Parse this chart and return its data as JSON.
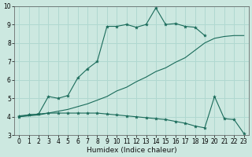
{
  "xlabel": "Humidex (Indice chaleur)",
  "xlim": [
    -0.5,
    23.5
  ],
  "ylim": [
    3,
    10
  ],
  "xticks": [
    0,
    1,
    2,
    3,
    4,
    5,
    6,
    7,
    8,
    9,
    10,
    11,
    12,
    13,
    14,
    15,
    16,
    17,
    18,
    19,
    20,
    21,
    22,
    23
  ],
  "yticks": [
    3,
    4,
    5,
    6,
    7,
    8,
    9,
    10
  ],
  "bg_color": "#cce8e0",
  "grid_color": "#b0d8d0",
  "line_color": "#1a6b5a",
  "x_upper": [
    0,
    1,
    2,
    3,
    4,
    5,
    6,
    7,
    8,
    9,
    10,
    11,
    12,
    13,
    14,
    15,
    16,
    17,
    18,
    19
  ],
  "y_upper": [
    4.0,
    4.1,
    4.15,
    5.1,
    5.0,
    5.15,
    6.1,
    6.6,
    7.0,
    8.9,
    8.9,
    9.0,
    8.85,
    9.0,
    9.9,
    9.0,
    9.05,
    8.9,
    8.85,
    8.4
  ],
  "x_mid": [
    0,
    1,
    2,
    3,
    4,
    5,
    6,
    7,
    8,
    9,
    10,
    11,
    12,
    13,
    14,
    15,
    16,
    17,
    18,
    19,
    20,
    21,
    22,
    23
  ],
  "y_mid": [
    4.0,
    4.05,
    4.1,
    4.2,
    4.3,
    4.4,
    4.55,
    4.7,
    4.9,
    5.1,
    5.4,
    5.6,
    5.9,
    6.15,
    6.45,
    6.65,
    6.95,
    7.2,
    7.6,
    8.0,
    8.25,
    8.35,
    8.4,
    8.4
  ],
  "x_lower": [
    0,
    1,
    2,
    3,
    4,
    5,
    6,
    7,
    8,
    9,
    10,
    11,
    12,
    13,
    14,
    15,
    16,
    17,
    18,
    19,
    20,
    21,
    22,
    23
  ],
  "y_lower": [
    4.05,
    4.1,
    4.15,
    4.2,
    4.2,
    4.2,
    4.2,
    4.2,
    4.2,
    4.15,
    4.1,
    4.05,
    4.0,
    3.95,
    3.9,
    3.85,
    3.75,
    3.65,
    3.5,
    3.4,
    5.1,
    3.9,
    3.85,
    3.1
  ]
}
